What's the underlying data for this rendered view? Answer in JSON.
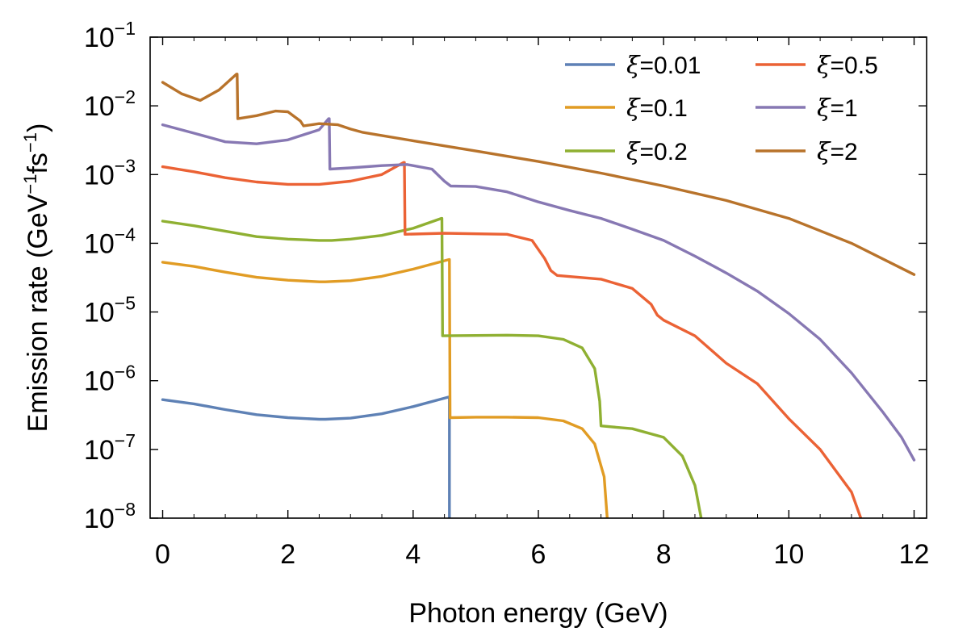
{
  "chart_data": {
    "type": "line",
    "xlabel": "Photon energy (GeV)",
    "ylabel": {
      "text": "Emission rate (GeV",
      "sup1": "−1",
      "mid": "fs",
      "sup2": "−1",
      "end": ")"
    },
    "xlim": [
      -0.2,
      12.2
    ],
    "ylim_log10": [
      -8,
      -1
    ],
    "x_ticks": [
      0,
      2,
      4,
      6,
      8,
      10,
      12
    ],
    "x_tick_labels": [
      "0",
      "2",
      "4",
      "6",
      "8",
      "10",
      "12"
    ],
    "y_ticks_log10": [
      -8,
      -7,
      -6,
      -5,
      -4,
      -3,
      -2,
      -1
    ],
    "y_tick_base": "10",
    "y_tick_exponents": [
      "−8",
      "−7",
      "−6",
      "−5",
      "−4",
      "−3",
      "−2",
      "−1"
    ],
    "yscale": "log",
    "legend_position": "top-right",
    "series": [
      {
        "name": "ξ=0.01",
        "symbol": "ξ",
        "value_text": "=0.01",
        "color": "#5e81b5",
        "x": [
          0,
          0.5,
          1,
          1.5,
          2,
          2.5,
          2.6,
          3,
          3.5,
          4,
          4.57,
          4.58,
          4.58
        ],
        "y": [
          5.3e-07,
          4.6e-07,
          3.8e-07,
          3.2e-07,
          2.9e-07,
          2.75e-07,
          2.75e-07,
          2.85e-07,
          3.3e-07,
          4.2e-07,
          5.8e-07,
          5.8e-07,
          1e-08
        ]
      },
      {
        "name": "ξ=0.1",
        "symbol": "ξ",
        "value_text": "=0.1",
        "color": "#e19c24",
        "x": [
          0,
          0.5,
          1,
          1.5,
          2,
          2.5,
          2.6,
          3,
          3.5,
          4,
          4.57,
          4.58,
          4.59,
          5,
          5.5,
          6,
          6.4,
          6.7,
          6.9,
          7.05,
          7.1
        ],
        "y": [
          5.3e-05,
          4.6e-05,
          3.8e-05,
          3.2e-05,
          2.9e-05,
          2.75e-05,
          2.75e-05,
          2.85e-05,
          3.3e-05,
          4.2e-05,
          5.8e-05,
          5.8e-05,
          2.9e-07,
          2.95e-07,
          2.95e-07,
          2.9e-07,
          2.6e-07,
          2e-07,
          1.2e-07,
          4e-08,
          1e-08
        ]
      },
      {
        "name": "ξ=0.2",
        "symbol": "ξ",
        "value_text": "=0.2",
        "color": "#8fb032",
        "x": [
          0,
          0.5,
          1,
          1.5,
          2,
          2.5,
          2.7,
          3,
          3.5,
          4,
          4.45,
          4.46,
          4.47,
          5,
          5.5,
          6,
          6.4,
          6.7,
          6.9,
          6.98,
          7.0,
          7.5,
          8,
          8.3,
          8.5,
          8.6
        ],
        "y": [
          0.00021,
          0.00018,
          0.00015,
          0.000125,
          0.000115,
          0.00011,
          0.00011,
          0.000115,
          0.00013,
          0.000165,
          0.00023,
          0.00023,
          4.5e-06,
          4.55e-06,
          4.6e-06,
          4.5e-06,
          4e-06,
          3e-06,
          1.5e-06,
          5e-07,
          2.2e-07,
          2e-07,
          1.5e-07,
          8e-08,
          3e-08,
          1e-08
        ]
      },
      {
        "name": "ξ=0.5",
        "symbol": "ξ",
        "value_text": "=0.5",
        "color": "#eb6235",
        "x": [
          0,
          0.5,
          1,
          1.5,
          2,
          2.5,
          3,
          3.5,
          3.85,
          3.86,
          3.87,
          4.5,
          5.5,
          5.9,
          6.1,
          6.2,
          6.3,
          7,
          7.5,
          7.8,
          7.9,
          8.0,
          8.5,
          9,
          9.5,
          10,
          10.5,
          11,
          11.15
        ],
        "y": [
          0.0013,
          0.0011,
          0.0009,
          0.00078,
          0.00072,
          0.00072,
          0.0008,
          0.001,
          0.0015,
          0.0015,
          0.000135,
          0.00014,
          0.000135,
          0.00011,
          6e-05,
          4e-05,
          3.4e-05,
          3e-05,
          2.2e-05,
          1.3e-05,
          9e-06,
          7.6e-06,
          4.5e-06,
          1.8e-06,
          9e-07,
          2.8e-07,
          1e-07,
          2.4e-08,
          1e-08
        ]
      },
      {
        "name": "ξ=1",
        "symbol": "ξ",
        "value_text": "=1",
        "color": "#8778b3",
        "x": [
          0,
          0.5,
          1,
          1.5,
          2,
          2.5,
          2.65,
          2.66,
          2.67,
          3,
          3.5,
          3.9,
          4.3,
          4.5,
          4.6,
          5,
          5.5,
          6,
          6.5,
          7,
          7.5,
          8,
          8.5,
          9,
          9.5,
          10,
          10.5,
          11,
          11.5,
          11.8,
          12
        ],
        "y": [
          0.0053,
          0.004,
          0.003,
          0.0028,
          0.0032,
          0.0045,
          0.0065,
          0.0065,
          0.0012,
          0.00125,
          0.00135,
          0.0014,
          0.0012,
          0.0008,
          0.00068,
          0.00067,
          0.00056,
          0.0004,
          0.0003,
          0.00023,
          0.00016,
          0.00011,
          6.5e-05,
          3.7e-05,
          2e-05,
          9.5e-06,
          4e-06,
          1.3e-06,
          3.5e-07,
          1.5e-07,
          7e-08
        ]
      },
      {
        "name": "ξ=2",
        "symbol": "ξ",
        "value_text": "=2",
        "color": "#b8732b",
        "x": [
          0,
          0.3,
          0.6,
          0.9,
          1.18,
          1.19,
          1.2,
          1.5,
          1.8,
          2.0,
          2.2,
          2.25,
          2.5,
          2.8,
          3.0,
          3.2,
          3.5,
          4,
          5,
          6,
          7,
          8,
          9,
          10,
          11,
          12
        ],
        "y": [
          0.022,
          0.015,
          0.012,
          0.017,
          0.029,
          0.029,
          0.0065,
          0.0072,
          0.0084,
          0.0082,
          0.006,
          0.0051,
          0.0055,
          0.0053,
          0.0046,
          0.0041,
          0.0037,
          0.0031,
          0.0022,
          0.00155,
          0.00105,
          0.00068,
          0.00042,
          0.00023,
          0.0001,
          3.5e-05
        ]
      }
    ]
  }
}
